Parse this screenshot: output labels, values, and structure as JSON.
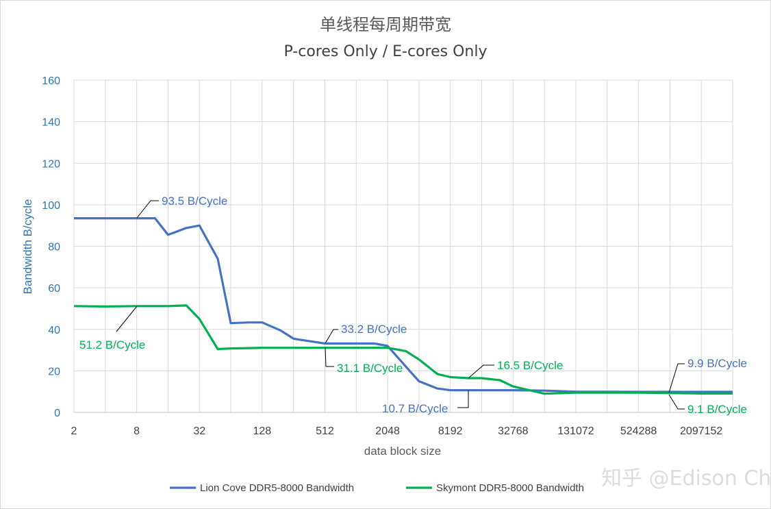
{
  "chart_data": {
    "type": "line",
    "title": "单线程每周期带宽",
    "subtitle": "P-cores Only / E-cores Only",
    "xlabel": "data block size",
    "ylabel": "Bandwidth B/cycle",
    "x_scale": "log2",
    "x_ticks": [
      2,
      8,
      32,
      128,
      512,
      2048,
      8192,
      32768,
      131072,
      524288,
      2097152
    ],
    "x_tick_labels": [
      "2",
      "8",
      "32",
      "128",
      "512",
      "2048",
      "8192",
      "32768",
      "131072",
      "524288",
      "2097152"
    ],
    "xlim": [
      2,
      4194304
    ],
    "ylim": [
      0,
      160
    ],
    "y_ticks": [
      0,
      20,
      40,
      60,
      80,
      100,
      120,
      140,
      160
    ],
    "grid": true,
    "legend_position": "bottom",
    "series": [
      {
        "name": "Lion Cove  DDR5-8000 Bandwidth",
        "color": "#4472C4",
        "points": [
          [
            2,
            93.5
          ],
          [
            4,
            93.5
          ],
          [
            8,
            93.5
          ],
          [
            12,
            93.5
          ],
          [
            16,
            85.5
          ],
          [
            24,
            88.8
          ],
          [
            32,
            90
          ],
          [
            48,
            74
          ],
          [
            64,
            43
          ],
          [
            96,
            43.3
          ],
          [
            128,
            43.3
          ],
          [
            192,
            39.5
          ],
          [
            256,
            35.5
          ],
          [
            512,
            33.2
          ],
          [
            1024,
            33.2
          ],
          [
            1536,
            33.2
          ],
          [
            2048,
            32
          ],
          [
            3072,
            22
          ],
          [
            4096,
            15
          ],
          [
            6144,
            11.5
          ],
          [
            8192,
            10.7
          ],
          [
            16384,
            10.7
          ],
          [
            32768,
            10.7
          ],
          [
            65536,
            10.5
          ],
          [
            131072,
            10
          ],
          [
            524288,
            9.9
          ],
          [
            2097152,
            9.9
          ],
          [
            4194304,
            9.9
          ]
        ]
      },
      {
        "name": "Skymont  DDR5-8000 Bandwidth",
        "color": "#00B050",
        "points": [
          [
            2,
            51.2
          ],
          [
            4,
            51
          ],
          [
            8,
            51.2
          ],
          [
            16,
            51.2
          ],
          [
            24,
            51.5
          ],
          [
            32,
            45
          ],
          [
            48,
            30.5
          ],
          [
            64,
            30.8
          ],
          [
            128,
            31.1
          ],
          [
            512,
            31.1
          ],
          [
            1024,
            31.1
          ],
          [
            2048,
            31.1
          ],
          [
            3072,
            29.5
          ],
          [
            4096,
            25.5
          ],
          [
            6144,
            18.5
          ],
          [
            8192,
            17
          ],
          [
            12288,
            16.5
          ],
          [
            16384,
            16.5
          ],
          [
            24576,
            15.5
          ],
          [
            32768,
            12.5
          ],
          [
            65536,
            9
          ],
          [
            131072,
            9.5
          ],
          [
            524288,
            9.5
          ],
          [
            2097152,
            9.1
          ],
          [
            4194304,
            9.1
          ]
        ]
      }
    ],
    "annotations": [
      {
        "text": "93.5 B/Cycle",
        "series": 0,
        "x": 8,
        "y": 93.5
      },
      {
        "text": "51.2 B/Cycle",
        "series": 1,
        "x": 8,
        "y": 51.2
      },
      {
        "text": "33.2 B/Cycle",
        "series": 0,
        "x": 512,
        "y": 33.2
      },
      {
        "text": "31.1 B/Cycle",
        "series": 1,
        "x": 512,
        "y": 31.1
      },
      {
        "text": "16.5 B/Cycle",
        "series": 1,
        "x": 12288,
        "y": 16.5
      },
      {
        "text": "10.7 B/Cycle",
        "series": 0,
        "x": 8192,
        "y": 10.7
      },
      {
        "text": "9.9 B/Cycle",
        "series": 0,
        "x": 2097152,
        "y": 9.9
      },
      {
        "text": "9.1 B/Cycle",
        "series": 1,
        "x": 2097152,
        "y": 9.1
      }
    ]
  },
  "watermark": "知乎 @Edison Chen"
}
